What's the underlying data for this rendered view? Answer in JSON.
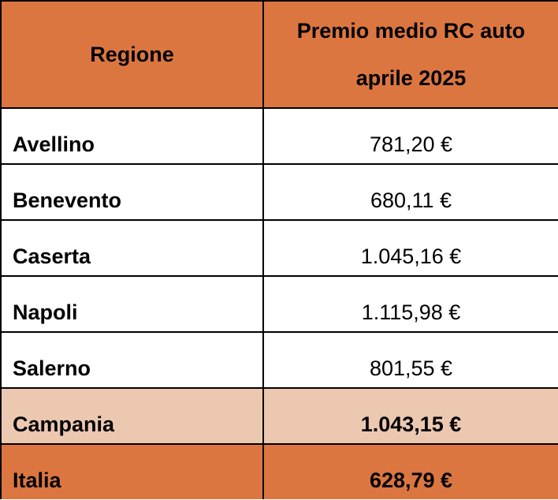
{
  "table": {
    "header": {
      "region_label": "Regione",
      "value_label_line1": "Premio medio RC auto",
      "value_label_line2": "aprile 2025"
    },
    "rows": [
      {
        "name": "Avellino",
        "value": "781,20 €"
      },
      {
        "name": "Benevento",
        "value": "680,11 €"
      },
      {
        "name": "Caserta",
        "value": "1.045,16 €"
      },
      {
        "name": "Napoli",
        "value": "1.115,98 €"
      },
      {
        "name": "Salerno",
        "value": "801,55 €"
      },
      {
        "name": "Campania",
        "value": "1.043,15 €"
      },
      {
        "name": "Italia",
        "value": "628,79 €"
      }
    ]
  },
  "colors": {
    "header_bg": "#dc7641",
    "region_row_bg": "#edc8b1",
    "national_row_bg": "#dc7641"
  }
}
